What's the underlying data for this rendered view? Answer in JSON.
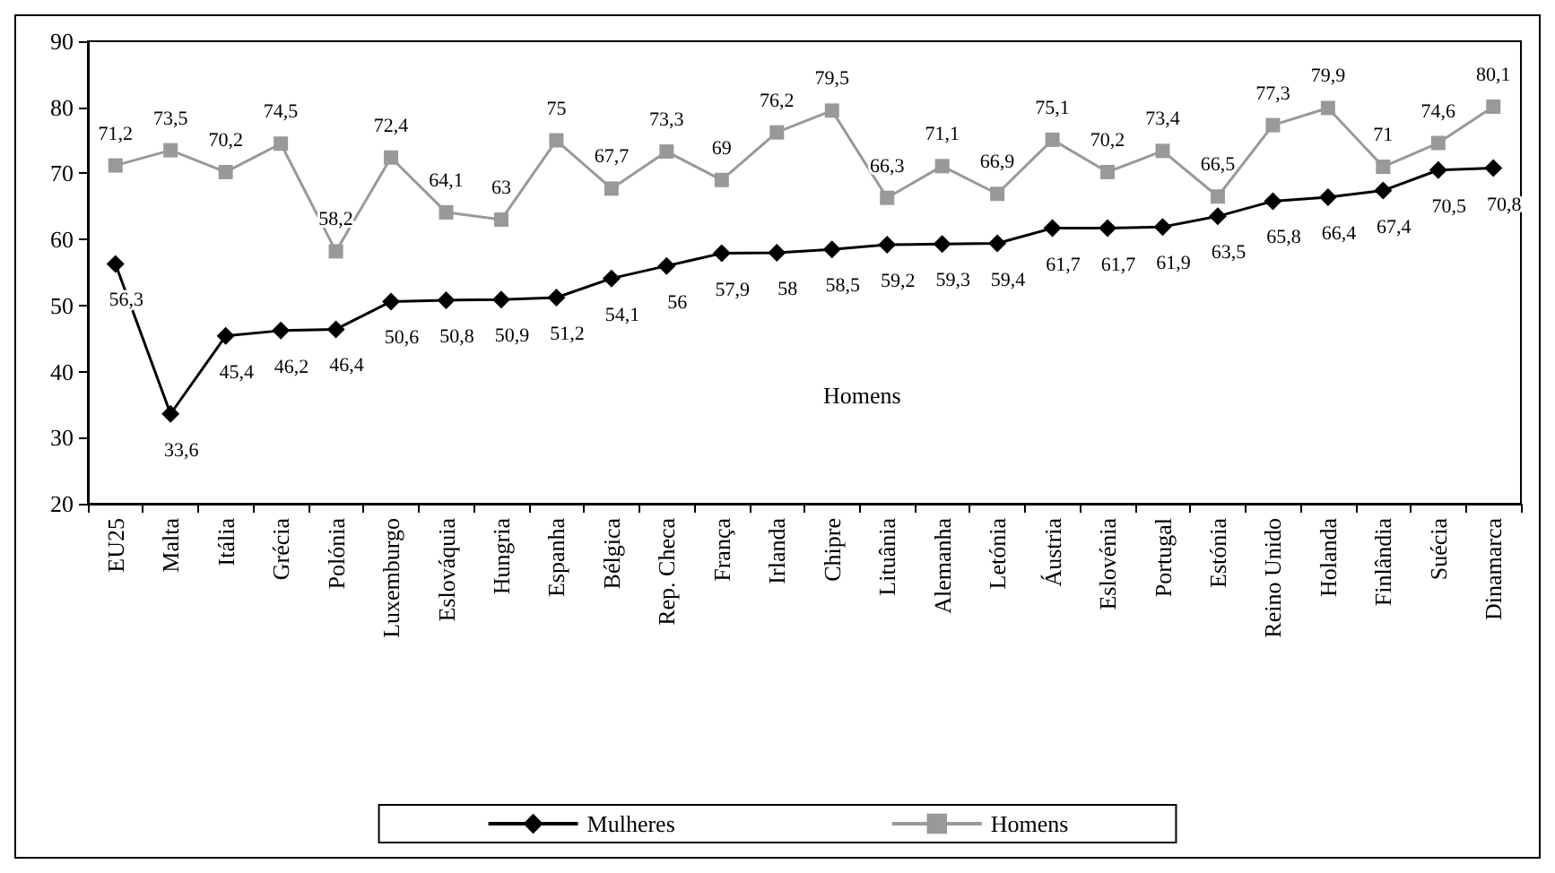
{
  "chart_data": {
    "type": "line",
    "categories": [
      "EU25",
      "Malta",
      "Itália",
      "Grécia",
      "Polónia",
      "Luxemburgo",
      "Eslováquia",
      "Hungria",
      "Espanha",
      "Bélgica",
      "Rep. Checa",
      "França",
      "Irlanda",
      "Chipre",
      "Lituânia",
      "Alemanha",
      "Letónia",
      "Áustria",
      "Eslovénia",
      "Portugal",
      "Estónia",
      "Reino Unido",
      "Holanda",
      "Finlândia",
      "Suécia",
      "Dinamarca"
    ],
    "series": [
      {
        "name": "Mulheres",
        "color": "#000000",
        "marker": "diamond",
        "values": [
          56.3,
          33.6,
          45.4,
          46.2,
          46.4,
          50.6,
          50.8,
          50.9,
          51.2,
          54.1,
          56,
          57.9,
          58,
          58.5,
          59.2,
          59.3,
          59.4,
          61.7,
          61.7,
          61.9,
          63.5,
          65.8,
          66.4,
          67.4,
          70.5,
          70.8
        ],
        "value_labels": [
          "56,3",
          "33,6",
          "45,4",
          "46,2",
          "46,4",
          "50,6",
          "50,8",
          "50,9",
          "51,2",
          "54,1",
          "56",
          "57,9",
          "58",
          "58,5",
          "59,2",
          "59,3",
          "59,4",
          "61,7",
          "61,7",
          "61,9",
          "63,5",
          "65,8",
          "66,4",
          "67,4",
          "70,5",
          "70,8"
        ]
      },
      {
        "name": "Homens",
        "color": "#999999",
        "marker": "square",
        "values": [
          71.2,
          73.5,
          70.2,
          74.5,
          58.2,
          72.4,
          64.1,
          63,
          75,
          67.7,
          73.3,
          69,
          76.2,
          79.5,
          66.3,
          71.1,
          66.9,
          75.1,
          70.2,
          73.4,
          66.5,
          77.3,
          79.9,
          71,
          74.6,
          80.1
        ],
        "value_labels": [
          "71,2",
          "73,5",
          "70,2",
          "74,5",
          "58,2",
          "72,4",
          "64,1",
          "63",
          "75",
          "67,7",
          "73,3",
          "69",
          "76,2",
          "79,5",
          "66,3",
          "71,1",
          "66,9",
          "75,1",
          "70,2",
          "73,4",
          "66,5",
          "77,3",
          "79,9",
          "71",
          "74,6",
          "80,1"
        ]
      }
    ],
    "ylim": [
      20,
      90
    ],
    "yticks": [
      20,
      30,
      40,
      50,
      60,
      70,
      80,
      90
    ],
    "grid": false,
    "legend": "bottom",
    "line_style": "solid",
    "annotations": [
      "Homens"
    ]
  }
}
